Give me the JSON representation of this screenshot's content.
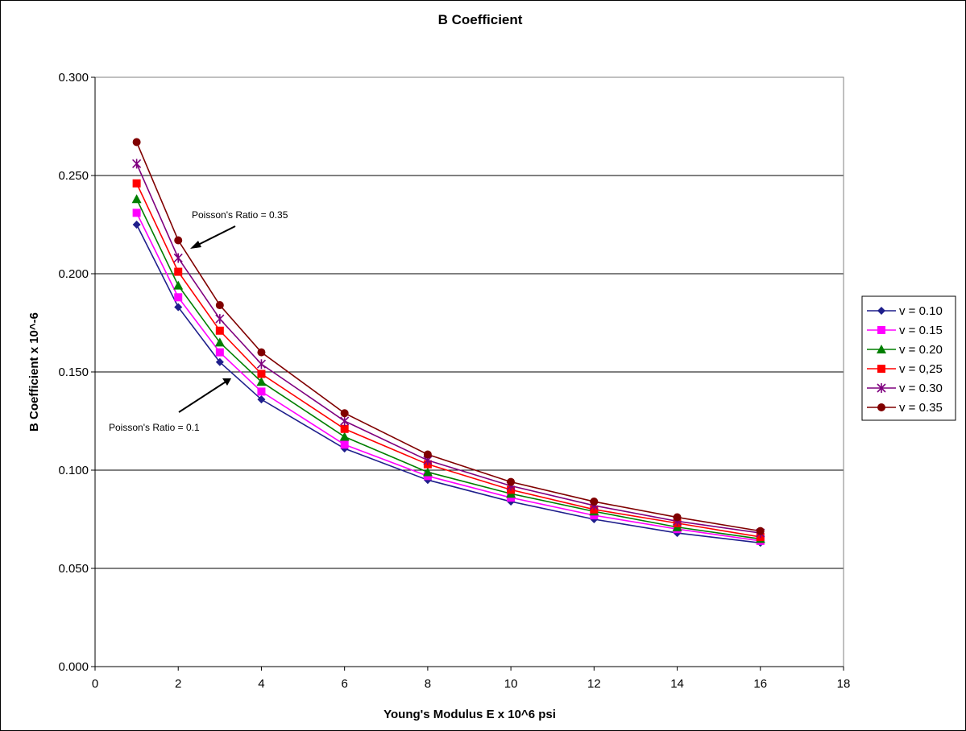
{
  "chart_data": {
    "type": "line",
    "title": "B Coefficient",
    "xlabel": "Young's Modulus E x 10^6 psi",
    "ylabel": "B Coefficient x 10^-6",
    "xlim": [
      0,
      18
    ],
    "ylim": [
      0,
      0.3
    ],
    "x_ticks": [
      "0",
      "2",
      "4",
      "6",
      "8",
      "10",
      "12",
      "14",
      "16",
      "18"
    ],
    "y_ticks": [
      "0.000",
      "0.050",
      "0.100",
      "0.150",
      "0.200",
      "0.250",
      "0.300"
    ],
    "grid": "horizontal",
    "legend_position": "right",
    "x": [
      1,
      2,
      3,
      4,
      6,
      8,
      10,
      12,
      14,
      16
    ],
    "series": [
      {
        "name": "v = 0.10",
        "color": "#1f1f8c",
        "marker": "diamond",
        "values": [
          0.225,
          0.183,
          0.155,
          0.136,
          0.111,
          0.095,
          0.084,
          0.075,
          0.068,
          0.063
        ]
      },
      {
        "name": "v = 0.15",
        "color": "#ff00ff",
        "marker": "square",
        "values": [
          0.231,
          0.188,
          0.16,
          0.14,
          0.113,
          0.097,
          0.086,
          0.077,
          0.07,
          0.064
        ]
      },
      {
        "name": "v = 0.20",
        "color": "#007f00",
        "marker": "triangle",
        "values": [
          0.238,
          0.194,
          0.165,
          0.145,
          0.117,
          0.099,
          0.088,
          0.079,
          0.071,
          0.065
        ]
      },
      {
        "name": "v = 0,25",
        "color": "#ff0000",
        "marker": "square",
        "values": [
          0.246,
          0.201,
          0.171,
          0.149,
          0.121,
          0.103,
          0.09,
          0.08,
          0.073,
          0.066
        ]
      },
      {
        "name": "v = 0.30",
        "color": "#7f007f",
        "marker": "star",
        "values": [
          0.256,
          0.208,
          0.177,
          0.154,
          0.125,
          0.105,
          0.092,
          0.082,
          0.074,
          0.068
        ]
      },
      {
        "name": "v = 0.35",
        "color": "#800000",
        "marker": "circle",
        "values": [
          0.267,
          0.217,
          0.184,
          0.16,
          0.129,
          0.108,
          0.094,
          0.084,
          0.076,
          0.069
        ]
      }
    ],
    "annotations": [
      {
        "text": "Poisson's Ratio = 0.35"
      },
      {
        "text": "Poisson's Ratio = 0.1"
      }
    ]
  }
}
